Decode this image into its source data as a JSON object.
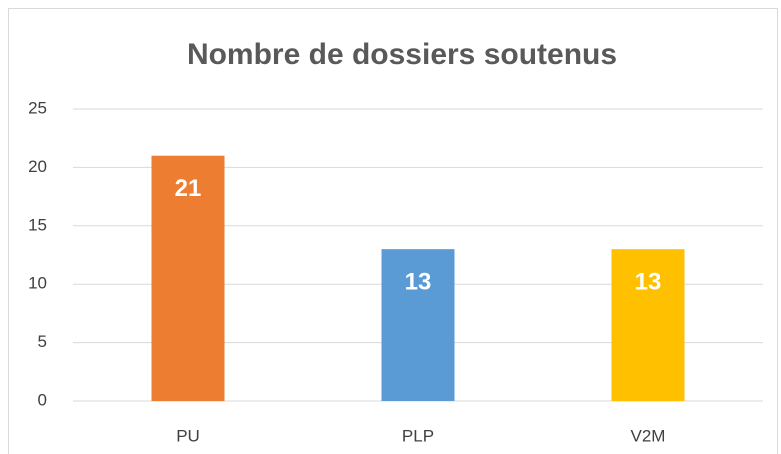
{
  "chart_data": {
    "type": "bar",
    "title": "Nombre de dossiers soutenus",
    "categories": [
      "PU",
      "PLP",
      "V2M"
    ],
    "values": [
      21,
      13,
      13
    ],
    "colors": [
      "#ed7d31",
      "#5b9bd5",
      "#ffc000"
    ],
    "ylim": [
      0,
      25
    ],
    "yticks": [
      0,
      5,
      10,
      15,
      20,
      25
    ],
    "grid": true
  }
}
